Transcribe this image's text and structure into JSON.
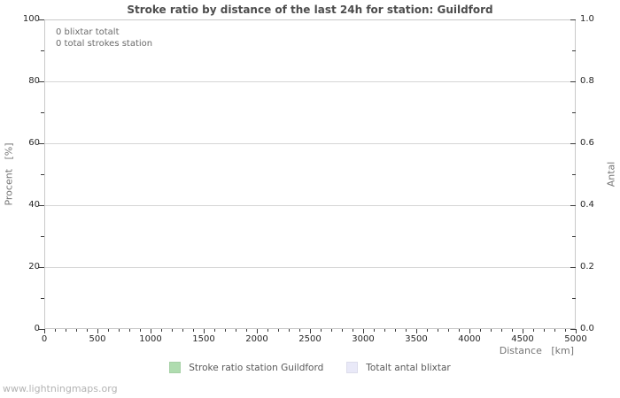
{
  "title": "Stroke ratio by distance of the last 24h for station: Guildford",
  "annotation": {
    "line1": "0 blixtar totalt",
    "line2": "0 total strokes station"
  },
  "footer": "www.lightningmaps.org",
  "legend": {
    "items": [
      {
        "label": "Stroke ratio station Guildford",
        "color": "#afdcaf"
      },
      {
        "label": "Totalt antal blixtar",
        "color": "#e9e9f8"
      }
    ]
  },
  "colors": {
    "title_text": "#4d4d4d",
    "grid_line": "#d6d6d6",
    "axis_border": "#c9c9c9",
    "tick_mark": "#3a3a3a",
    "series_stroke_ratio": "#afdcaf",
    "series_total_strokes": "#e9e9f8"
  },
  "chart_data": {
    "type": "line",
    "title": "Stroke ratio by distance of the last 24h for station: Guildford",
    "grid": "horizontal-major-only",
    "legend_position": "bottom-center",
    "x_axis": {
      "label": "Distance [km]",
      "min": 0,
      "max": 5000,
      "major_step": 500,
      "minor_step": 100,
      "tick_labels": [
        "0",
        "500",
        "1000",
        "1500",
        "2000",
        "2500",
        "3000",
        "3500",
        "4000",
        "4500",
        "5000"
      ]
    },
    "y_left": {
      "label": "Procent [%]",
      "min": 0,
      "max": 100,
      "major_step": 20,
      "minor_step": 10,
      "tick_labels": [
        "0",
        "20",
        "40",
        "60",
        "80",
        "100"
      ]
    },
    "y_right": {
      "label": "Antal",
      "min": 0,
      "max": 1,
      "major_step": 0.2,
      "minor_step": 0.1,
      "tick_labels": [
        "0.0",
        "0.2",
        "0.4",
        "0.6",
        "0.8",
        "1.0"
      ]
    },
    "series": [
      {
        "name": "Stroke ratio station Guildford",
        "axis": "left",
        "color": "#afdcaf",
        "values": []
      },
      {
        "name": "Totalt antal blixtar",
        "axis": "right",
        "color": "#e9e9f8",
        "values": []
      }
    ],
    "totals": {
      "blixtar_totalt": 0,
      "total_strokes_station": 0
    }
  }
}
